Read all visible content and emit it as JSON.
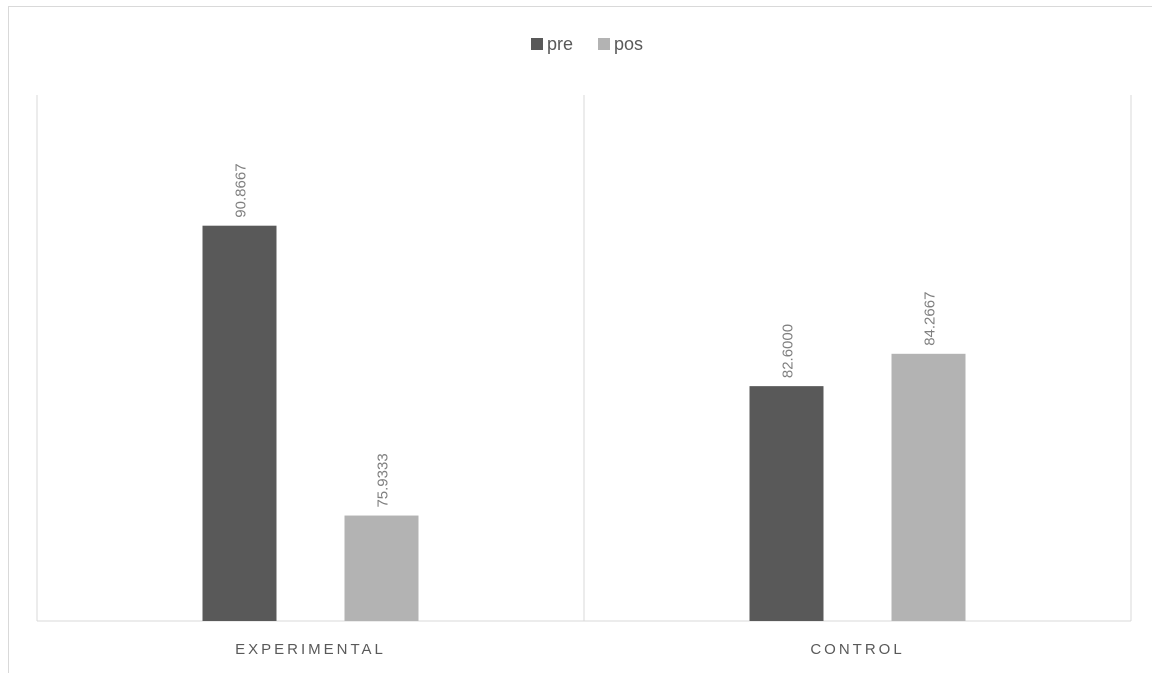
{
  "chart_data": {
    "type": "bar",
    "categories": [
      "EXPERIMENTAL",
      "CONTROL"
    ],
    "series": [
      {
        "name": "pre",
        "values": [
          90.8667,
          82.6
        ],
        "labels": [
          "90.8667",
          "82.6000"
        ],
        "color": "#595959"
      },
      {
        "name": "pos",
        "values": [
          75.9333,
          84.2667
        ],
        "labels": [
          "75.9333",
          "84.2667"
        ],
        "color": "#b3b3b3"
      }
    ],
    "ylim": [
      70.5,
      97.6
    ],
    "grid": false,
    "legend": "top-center",
    "axis_color": "#d9d9d9",
    "label_color": "#7f7f7f",
    "category_label_color": "#595959"
  }
}
